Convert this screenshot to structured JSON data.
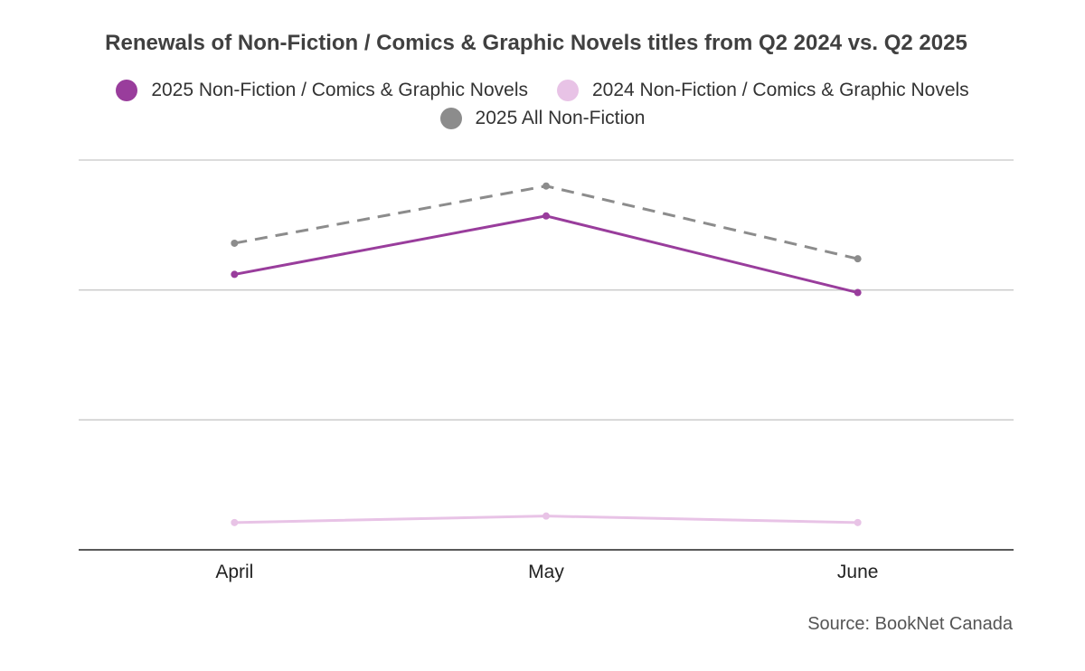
{
  "chart_data": {
    "type": "line",
    "title": "Renewals of Non-Fiction / Comics & Graphic Novels titles from Q2 2024 vs. Q2 2025",
    "categories": [
      "April",
      "May",
      "June"
    ],
    "series": [
      {
        "name": "2025 Non-Fiction / Comics & Graphic Novels",
        "values": [
          2.12,
          2.57,
          1.98
        ],
        "color": "#993d9c",
        "dashed": false
      },
      {
        "name": "2024 Non-Fiction / Comics & Graphic Novels",
        "values": [
          0.21,
          0.26,
          0.21
        ],
        "color": "#e8c3e6",
        "dashed": false
      },
      {
        "name": "2025 All Non-Fiction",
        "values": [
          2.36,
          2.8,
          2.24
        ],
        "color": "#8c8c8c",
        "dashed": true
      }
    ],
    "ylim": [
      0,
      3
    ],
    "yticks_labeled": false,
    "grid": true,
    "legend_position": "top",
    "source": "Source: BookNet Canada"
  }
}
